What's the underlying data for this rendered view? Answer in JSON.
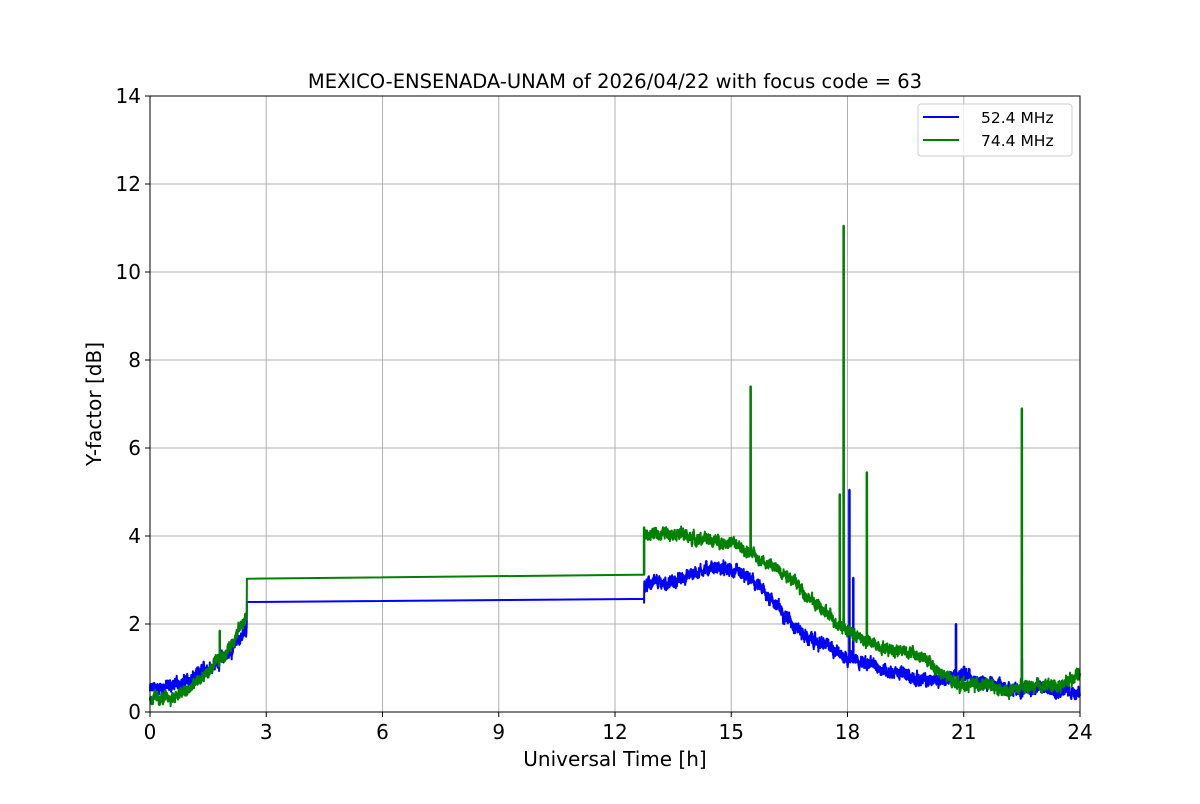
{
  "chart_data": {
    "type": "line",
    "title": "MEXICO-ENSENADA-UNAM of 2026/04/22 with focus code = 63",
    "xlabel": "Universal Time [h]",
    "ylabel": "Y-factor [dB]",
    "xlim": [
      0,
      24
    ],
    "ylim": [
      0,
      14
    ],
    "xticks": [
      0,
      3,
      6,
      9,
      12,
      15,
      18,
      21,
      24
    ],
    "yticks": [
      0,
      2,
      4,
      6,
      8,
      10,
      12,
      14
    ],
    "grid": true,
    "legend_position": "top-right",
    "gap": [
      2.5,
      12.75
    ],
    "series": [
      {
        "name": "52.4 MHz",
        "color": "#0000ff",
        "noise": 0.13,
        "points": [
          [
            0,
            0.5
          ],
          [
            0.5,
            0.6
          ],
          [
            1,
            0.7
          ],
          [
            1.5,
            1.0
          ],
          [
            2,
            1.3
          ],
          [
            2.5,
            1.9
          ],
          [
            2.5,
            2.5
          ],
          [
            12.75,
            2.57
          ],
          [
            12.75,
            2.9
          ],
          [
            13.5,
            2.95
          ],
          [
            14,
            3.15
          ],
          [
            14.5,
            3.3
          ],
          [
            15,
            3.2
          ],
          [
            15.5,
            3.0
          ],
          [
            16,
            2.6
          ],
          [
            16.5,
            2.1
          ],
          [
            17,
            1.65
          ],
          [
            17.5,
            1.5
          ],
          [
            18,
            1.25
          ],
          [
            18.5,
            1.1
          ],
          [
            19,
            0.95
          ],
          [
            19.5,
            0.85
          ],
          [
            20,
            0.7
          ],
          [
            20.5,
            0.75
          ],
          [
            21,
            0.85
          ],
          [
            21.5,
            0.7
          ],
          [
            22,
            0.55
          ],
          [
            22.5,
            0.5
          ],
          [
            23,
            0.55
          ],
          [
            23.5,
            0.5
          ],
          [
            24,
            0.45
          ]
        ],
        "spikes": [
          [
            18.05,
            5.05
          ],
          [
            18.15,
            3.05
          ],
          [
            20.8,
            2.0
          ],
          [
            22.5,
            1.2
          ]
        ]
      },
      {
        "name": "74.4 MHz",
        "color": "#008000",
        "noise": 0.12,
        "points": [
          [
            0,
            0.3
          ],
          [
            0.5,
            0.3
          ],
          [
            1,
            0.5
          ],
          [
            1.5,
            0.9
          ],
          [
            2,
            1.4
          ],
          [
            2.5,
            2.2
          ],
          [
            2.5,
            3.03
          ],
          [
            12.75,
            3.12
          ],
          [
            12.75,
            4.0
          ],
          [
            13.5,
            4.1
          ],
          [
            14,
            3.95
          ],
          [
            15,
            3.85
          ],
          [
            15.5,
            3.6
          ],
          [
            16,
            3.35
          ],
          [
            16.5,
            3.1
          ],
          [
            17,
            2.6
          ],
          [
            17.5,
            2.2
          ],
          [
            18,
            1.85
          ],
          [
            18.5,
            1.6
          ],
          [
            19,
            1.45
          ],
          [
            19.5,
            1.4
          ],
          [
            20,
            1.2
          ],
          [
            20.5,
            0.8
          ],
          [
            21,
            0.6
          ],
          [
            21.5,
            0.65
          ],
          [
            22,
            0.45
          ],
          [
            22.5,
            0.55
          ],
          [
            23,
            0.6
          ],
          [
            23.5,
            0.6
          ],
          [
            24,
            0.9
          ]
        ],
        "spikes": [
          [
            1.8,
            1.85
          ],
          [
            12.75,
            4.2
          ],
          [
            15.5,
            7.4
          ],
          [
            17.8,
            4.95
          ],
          [
            17.9,
            11.05
          ],
          [
            18.5,
            5.45
          ],
          [
            22.5,
            6.9
          ]
        ]
      }
    ]
  }
}
